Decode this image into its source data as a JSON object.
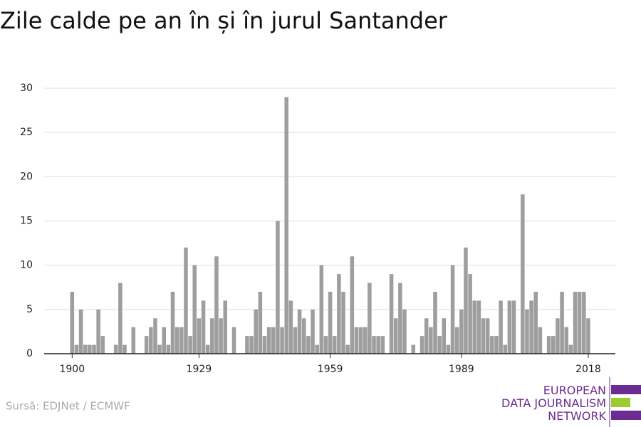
{
  "chart_data": {
    "type": "bar",
    "title": "Zile calde pe an în și în jurul Santander",
    "source": "Sursă: EDJNet / ECMWF",
    "logo": [
      "EUROPEAN",
      "DATA JOURNALISM",
      "NETWORK"
    ],
    "color": "#9e9e9e",
    "x": [
      1900,
      1901,
      1902,
      1903,
      1904,
      1905,
      1906,
      1907,
      1908,
      1909,
      1910,
      1911,
      1912,
      1913,
      1914,
      1915,
      1916,
      1917,
      1918,
      1919,
      1920,
      1921,
      1922,
      1923,
      1924,
      1925,
      1926,
      1927,
      1928,
      1929,
      1930,
      1931,
      1932,
      1933,
      1934,
      1935,
      1936,
      1937,
      1938,
      1939,
      1940,
      1941,
      1942,
      1943,
      1944,
      1945,
      1946,
      1947,
      1948,
      1949,
      1950,
      1951,
      1952,
      1953,
      1954,
      1955,
      1956,
      1957,
      1958,
      1959,
      1960,
      1961,
      1962,
      1963,
      1964,
      1965,
      1966,
      1967,
      1968,
      1969,
      1970,
      1971,
      1972,
      1973,
      1974,
      1975,
      1976,
      1977,
      1978,
      1979,
      1980,
      1981,
      1982,
      1983,
      1984,
      1985,
      1986,
      1987,
      1988,
      1989,
      1990,
      1991,
      1992,
      1993,
      1994,
      1995,
      1996,
      1997,
      1998,
      1999,
      2000,
      2001,
      2002,
      2003,
      2004,
      2005,
      2006,
      2007,
      2008,
      2009,
      2010,
      2011,
      2012,
      2013,
      2014,
      2015,
      2016,
      2017,
      2018
    ],
    "values": [
      7,
      1,
      5,
      1,
      1,
      1,
      5,
      2,
      0,
      0,
      1,
      8,
      1,
      0,
      3,
      0,
      0,
      2,
      3,
      4,
      1,
      3,
      1,
      7,
      3,
      3,
      12,
      2,
      10,
      4,
      6,
      1,
      4,
      11,
      4,
      6,
      0,
      3,
      0,
      0,
      2,
      2,
      5,
      7,
      2,
      3,
      3,
      15,
      3,
      29,
      6,
      3,
      5,
      4,
      2,
      5,
      1,
      10,
      2,
      7,
      2,
      9,
      7,
      1,
      11,
      3,
      3,
      3,
      8,
      2,
      2,
      2,
      0,
      9,
      4,
      8,
      5,
      0,
      1,
      0,
      2,
      4,
      3,
      7,
      2,
      4,
      1,
      10,
      3,
      5,
      12,
      9,
      6,
      6,
      4,
      4,
      2,
      2,
      6,
      1,
      6,
      6,
      0,
      18,
      5,
      6,
      7,
      3,
      0,
      2,
      2,
      4,
      7,
      3,
      1,
      7,
      7,
      7,
      4
    ],
    "xlim": [
      1893.6,
      2024.2
    ],
    "xticks": [
      1900,
      1929,
      1959,
      1989,
      2018
    ],
    "ylim": [
      0,
      30
    ],
    "yticks": [
      0,
      5,
      10,
      15,
      20,
      25,
      30
    ],
    "grid": true
  }
}
